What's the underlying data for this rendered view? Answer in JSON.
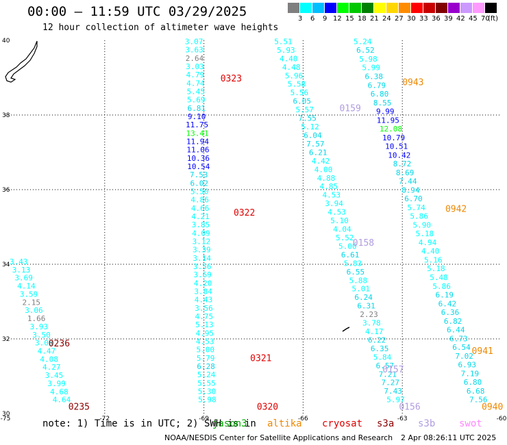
{
  "header": {
    "title": "00:00 – 11:59 UTC 03/29/2025",
    "subtitle": "12 hour collection of altimeter wave heights"
  },
  "legend": {
    "unit": "(ft)",
    "stops": [
      {
        "label": "3",
        "color": "#7f7f7f"
      },
      {
        "label": "6",
        "color": "#00ffff"
      },
      {
        "label": "9",
        "color": "#00bfff"
      },
      {
        "label": "12",
        "color": "#0000ff"
      },
      {
        "label": "15",
        "color": "#00ff00"
      },
      {
        "label": "18",
        "color": "#00c800"
      },
      {
        "label": "21",
        "color": "#008000"
      },
      {
        "label": "24",
        "color": "#ffff00"
      },
      {
        "label": "27",
        "color": "#ffd700"
      },
      {
        "label": "30",
        "color": "#ff8c00"
      },
      {
        "label": "33",
        "color": "#ff0000"
      },
      {
        "label": "36",
        "color": "#c80000"
      },
      {
        "label": "39",
        "color": "#800000"
      },
      {
        "label": "42",
        "color": "#9900cc"
      },
      {
        "label": "45",
        "color": "#cc99ff"
      },
      {
        "label": "70",
        "color": "#ff99ff"
      },
      {
        "label": "",
        "color": "#000000"
      }
    ]
  },
  "map": {
    "lat_range": [
      30,
      40
    ],
    "lon_range": [
      -75,
      -60
    ],
    "lat_ticks": [
      "30",
      "32",
      "34",
      "36",
      "38",
      "40"
    ],
    "lon_ticks": [
      "-75",
      "-72",
      "-69",
      "-66",
      "-63",
      "-60"
    ]
  },
  "tracks": [
    {
      "color_name": "cyan-track",
      "lon0": -74.6,
      "lat0": 34.0,
      "lon1": -73.3,
      "lat1": 30.3,
      "values": [
        "3.43",
        "3.13",
        "3.69",
        "4.14",
        "3.59",
        "2.15",
        "3.06",
        "1.66",
        "3.93",
        "3.50",
        "3.08",
        "4.47",
        "4.08",
        "4.27",
        "3.45",
        "3.99",
        "4.68",
        "4.64"
      ]
    },
    {
      "color_name": "track-0323",
      "lon0": -69.3,
      "lat0": 39.9,
      "lon1": -68.9,
      "lat1": 30.3,
      "values": [
        "3.07",
        "3.63",
        "2.64",
        "3.03",
        "4.79",
        "4.74",
        "5.45",
        "5.69",
        "6.81",
        "9.10",
        "11.75",
        "13.41",
        "11.94",
        "11.06",
        "10.36",
        "10.54",
        "7.53",
        "6.02",
        "5.50",
        "4.86",
        "4.66",
        "4.21",
        "3.85",
        "4.09",
        "3.12",
        "3.39",
        "3.14",
        "3.56",
        "3.69",
        "4.20",
        "3.84",
        "4.43",
        "3.56",
        "4.75",
        "5.13",
        "4.95",
        "4.53",
        "5.00",
        "5.79",
        "6.28",
        "5.24",
        "5.55",
        "5.30",
        "5.98"
      ]
    },
    {
      "color_name": "track-0159",
      "lon0": -66.6,
      "lat0": 39.9,
      "lon1": -63.2,
      "lat1": 30.3,
      "values": [
        "5.51",
        "5.93",
        "4.40",
        "4.48",
        "5.96",
        "5.58",
        "5.56",
        "6.05",
        "5.57",
        "7.55",
        "5.12",
        "6.04",
        "7.57",
        "6.21",
        "4.42",
        "4.00",
        "4.88",
        "4.85",
        "4.53",
        "3.94",
        "4.53",
        "5.10",
        "4.04",
        "5.52",
        "5.00",
        "6.61",
        "5.83",
        "6.55",
        "5.88",
        "5.01",
        "6.24",
        "6.31",
        "2.23",
        "3.78",
        "4.17",
        "6.22",
        "6.35",
        "5.84",
        "6.57",
        "7.21",
        "7.27",
        "7.43",
        "5.97"
      ]
    },
    {
      "color_name": "track-0943",
      "lon0": -64.2,
      "lat0": 39.9,
      "lon1": -60.7,
      "lat1": 30.3,
      "values": [
        "5.24",
        "6.52",
        "5.98",
        "5.99",
        "6.38",
        "6.79",
        "6.80",
        "8.55",
        "9.99",
        "11.95",
        "12.08",
        "10.79",
        "10.51",
        "10.42",
        "8.72",
        "8.69",
        "7.44",
        "8.94",
        "6.70",
        "5.74",
        "5.86",
        "5.90",
        "5.18",
        "4.94",
        "4.40",
        "5.16",
        "5.18",
        "5.48",
        "5.86",
        "6.19",
        "6.42",
        "6.36",
        "6.82",
        "6.44",
        "6.73",
        "6.54",
        "7.02",
        "6.93",
        "7.19",
        "6.80",
        "6.68",
        "7.56"
      ]
    }
  ],
  "pass_labels": [
    {
      "text": "0323",
      "lon": -68.5,
      "lat": 38.9,
      "color": "#e00000"
    },
    {
      "text": "0322",
      "lon": -68.1,
      "lat": 35.3,
      "color": "#e00000"
    },
    {
      "text": "0321",
      "lon": -67.6,
      "lat": 31.4,
      "color": "#e00000"
    },
    {
      "text": "0320",
      "lon": -67.4,
      "lat": 30.1,
      "color": "#e00000"
    },
    {
      "text": "0236",
      "lon": -73.7,
      "lat": 31.8,
      "color": "#8b0000"
    },
    {
      "text": "0235",
      "lon": -73.1,
      "lat": 30.1,
      "color": "#8b0000"
    },
    {
      "text": "0159",
      "lon": -64.9,
      "lat": 38.1,
      "color": "#b09ce0"
    },
    {
      "text": "0158",
      "lon": -64.5,
      "lat": 34.5,
      "color": "#b09ce0"
    },
    {
      "text": "0157",
      "lon": -63.6,
      "lat": 31.1,
      "color": "#b09ce0"
    },
    {
      "text": "0156",
      "lon": -63.1,
      "lat": 30.1,
      "color": "#b09ce0"
    },
    {
      "text": "0943",
      "lon": -63.0,
      "lat": 38.8,
      "color": "#ee8800"
    },
    {
      "text": "0942",
      "lon": -61.7,
      "lat": 35.4,
      "color": "#ee8800"
    },
    {
      "text": "0941",
      "lon": -60.9,
      "lat": 31.6,
      "color": "#ee8800"
    },
    {
      "text": "0940",
      "lon": -60.6,
      "lat": 30.1,
      "color": "#ee8800"
    }
  ],
  "footer": {
    "note": "note: 1) Time is in UTC; 2) SWH is in",
    "satellites": [
      {
        "name": "jason3",
        "color": "#00aa00"
      },
      {
        "name": "altika",
        "color": "#ee8800"
      },
      {
        "name": "cryosat",
        "color": "#e00000"
      },
      {
        "name": "s3a",
        "color": "#8b0000"
      },
      {
        "name": "s3b",
        "color": "#b09ce0"
      },
      {
        "name": "swot",
        "color": "#ff88ff"
      }
    ],
    "agency": "NOAA/NESDIS Center for Satellite Applications and Research",
    "generated": "2 Apr 08:26:11 UTC 2025"
  }
}
